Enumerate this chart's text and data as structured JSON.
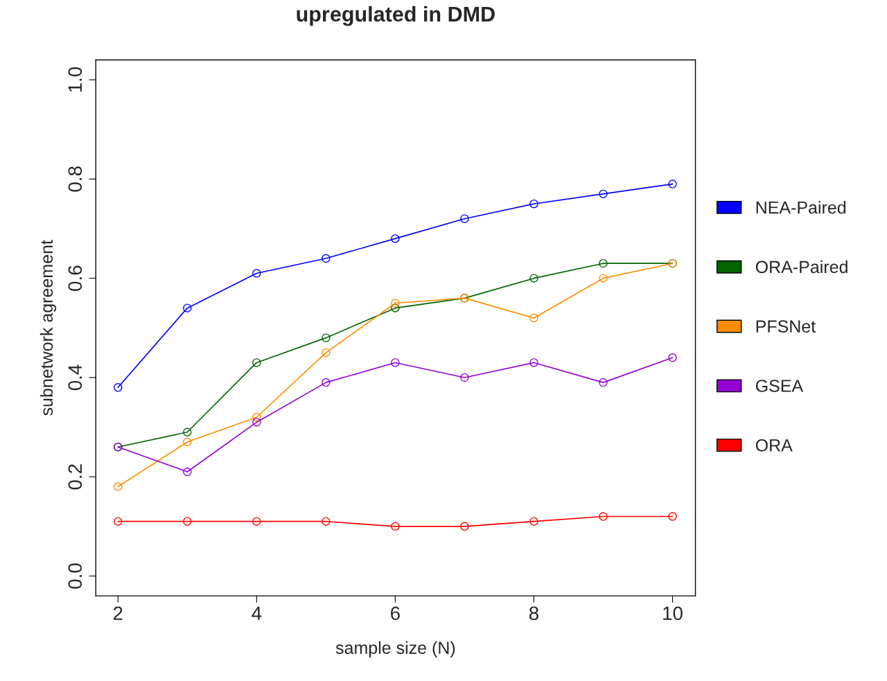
{
  "chart_data": {
    "type": "line",
    "title": "upregulated in DMD",
    "xlabel": "sample size (N)",
    "ylabel": "subnetwork agreement",
    "x": [
      2,
      3,
      4,
      5,
      6,
      7,
      8,
      9,
      10
    ],
    "series": [
      {
        "name": "NEA-Paired",
        "color": "#0000ff",
        "values": [
          0.38,
          0.54,
          0.61,
          0.64,
          0.68,
          0.72,
          0.75,
          0.77,
          0.79
        ]
      },
      {
        "name": "ORA-Paired",
        "color": "#006400",
        "values": [
          0.26,
          0.29,
          0.43,
          0.48,
          0.54,
          0.56,
          0.6,
          0.63,
          0.63
        ]
      },
      {
        "name": "PFSNet",
        "color": "#ff8c00",
        "values": [
          0.18,
          0.27,
          0.32,
          0.45,
          0.55,
          0.56,
          0.52,
          0.6,
          0.63
        ]
      },
      {
        "name": "GSEA",
        "color": "#9400d3",
        "values": [
          0.26,
          0.21,
          0.31,
          0.39,
          0.43,
          0.4,
          0.43,
          0.39,
          0.44
        ]
      },
      {
        "name": "ORA",
        "color": "#ff0000",
        "values": [
          0.11,
          0.11,
          0.11,
          0.11,
          0.1,
          0.1,
          0.11,
          0.12,
          0.12
        ]
      }
    ],
    "xlim": [
      1.68,
      10.33
    ],
    "ylim": [
      -0.04,
      1.04
    ],
    "xticks": [
      2,
      4,
      6,
      8,
      10
    ],
    "yticks": [
      {
        "value": 0,
        "label": "0.0"
      },
      0.2,
      0.4,
      0.6,
      0.8,
      {
        "value": 1,
        "label": "1.0"
      }
    ],
    "marker": "circle",
    "line_style": "solid",
    "grid": false,
    "legend": "right"
  }
}
